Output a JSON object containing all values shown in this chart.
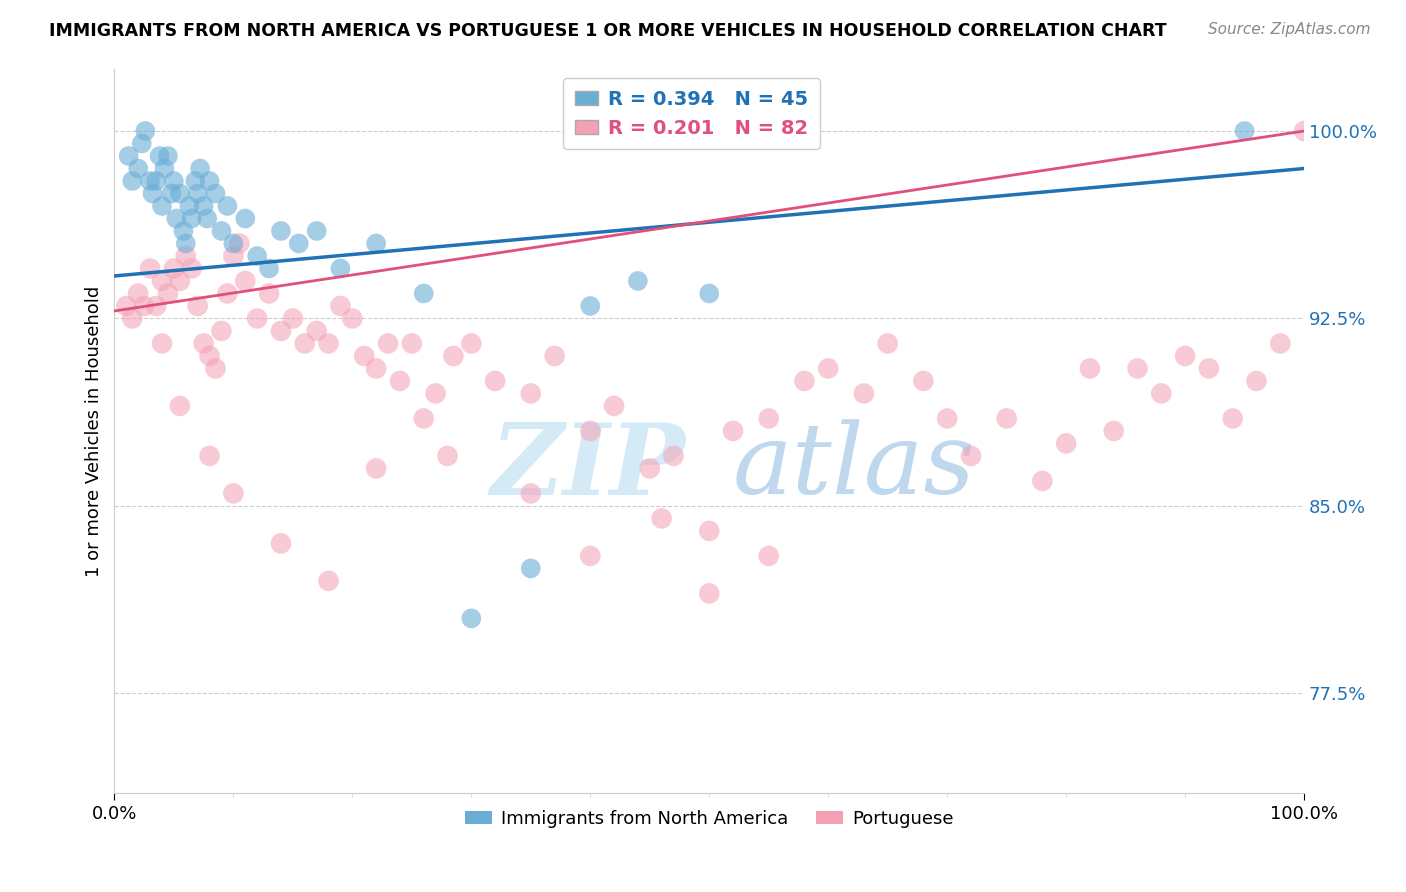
{
  "title": "IMMIGRANTS FROM NORTH AMERICA VS PORTUGUESE 1 OR MORE VEHICLES IN HOUSEHOLD CORRELATION CHART",
  "source": "Source: ZipAtlas.com",
  "ylabel": "1 or more Vehicles in Household",
  "yticks": [
    77.5,
    85.0,
    92.5,
    100.0
  ],
  "ytick_labels": [
    "77.5%",
    "85.0%",
    "92.5%",
    "100.0%"
  ],
  "ymin": 73.5,
  "ymax": 102.5,
  "xmin": 0.0,
  "xmax": 100.0,
  "blue_R": 0.394,
  "blue_N": 45,
  "pink_R": 0.201,
  "pink_N": 82,
  "blue_color": "#6aaed6",
  "pink_color": "#f4a0b5",
  "blue_line_color": "#2171b5",
  "pink_line_color": "#e0507a",
  "blue_label": "Immigrants from North America",
  "pink_label": "Portuguese",
  "watermark_zip": "ZIP",
  "watermark_atlas": "atlas",
  "watermark_color": "#c8dff0",
  "blue_x": [
    1.2,
    1.5,
    2.0,
    2.3,
    2.6,
    3.0,
    3.2,
    3.5,
    3.8,
    4.0,
    4.2,
    4.5,
    4.8,
    5.0,
    5.2,
    5.5,
    5.8,
    6.0,
    6.3,
    6.5,
    6.8,
    7.0,
    7.2,
    7.5,
    7.8,
    8.0,
    8.5,
    9.0,
    9.5,
    10.0,
    11.0,
    12.0,
    13.0,
    14.0,
    15.5,
    17.0,
    19.0,
    22.0,
    26.0,
    30.0,
    35.0,
    40.0,
    44.0,
    50.0,
    95.0
  ],
  "blue_y": [
    99.0,
    98.0,
    98.5,
    99.5,
    100.0,
    98.0,
    97.5,
    98.0,
    99.0,
    97.0,
    98.5,
    99.0,
    97.5,
    98.0,
    96.5,
    97.5,
    96.0,
    95.5,
    97.0,
    96.5,
    98.0,
    97.5,
    98.5,
    97.0,
    96.5,
    98.0,
    97.5,
    96.0,
    97.0,
    95.5,
    96.5,
    95.0,
    94.5,
    96.0,
    95.5,
    96.0,
    94.5,
    95.5,
    93.5,
    80.5,
    82.5,
    93.0,
    94.0,
    93.5,
    100.0
  ],
  "pink_x": [
    1.0,
    1.5,
    2.0,
    2.5,
    3.0,
    3.5,
    4.0,
    4.5,
    5.0,
    5.5,
    6.0,
    6.5,
    7.0,
    7.5,
    8.0,
    8.5,
    9.0,
    9.5,
    10.0,
    10.5,
    11.0,
    12.0,
    13.0,
    14.0,
    15.0,
    16.0,
    17.0,
    18.0,
    19.0,
    20.0,
    21.0,
    22.0,
    23.0,
    24.0,
    25.0,
    26.0,
    27.0,
    28.5,
    30.0,
    32.0,
    35.0,
    37.0,
    40.0,
    42.0,
    45.0,
    47.0,
    50.0,
    52.0,
    55.0,
    58.0,
    60.0,
    63.0,
    65.0,
    68.0,
    70.0,
    72.0,
    75.0,
    78.0,
    80.0,
    82.0,
    84.0,
    86.0,
    88.0,
    90.0,
    92.0,
    94.0,
    96.0,
    98.0,
    100.0,
    4.0,
    5.5,
    8.0,
    10.0,
    14.0,
    18.0,
    22.0,
    28.0,
    35.0,
    40.0,
    46.0,
    50.0,
    55.0
  ],
  "pink_y": [
    93.0,
    92.5,
    93.5,
    93.0,
    94.5,
    93.0,
    94.0,
    93.5,
    94.5,
    94.0,
    95.0,
    94.5,
    93.0,
    91.5,
    91.0,
    90.5,
    92.0,
    93.5,
    95.0,
    95.5,
    94.0,
    92.5,
    93.5,
    92.0,
    92.5,
    91.5,
    92.0,
    91.5,
    93.0,
    92.5,
    91.0,
    90.5,
    91.5,
    90.0,
    91.5,
    88.5,
    89.5,
    91.0,
    91.5,
    90.0,
    89.5,
    91.0,
    88.0,
    89.0,
    86.5,
    87.0,
    84.0,
    88.0,
    88.5,
    90.0,
    90.5,
    89.5,
    91.5,
    90.0,
    88.5,
    87.0,
    88.5,
    86.0,
    87.5,
    90.5,
    88.0,
    90.5,
    89.5,
    91.0,
    90.5,
    88.5,
    90.0,
    91.5,
    100.0,
    91.5,
    89.0,
    87.0,
    85.5,
    83.5,
    82.0,
    86.5,
    87.0,
    85.5,
    83.0,
    84.5,
    81.5,
    83.0
  ]
}
